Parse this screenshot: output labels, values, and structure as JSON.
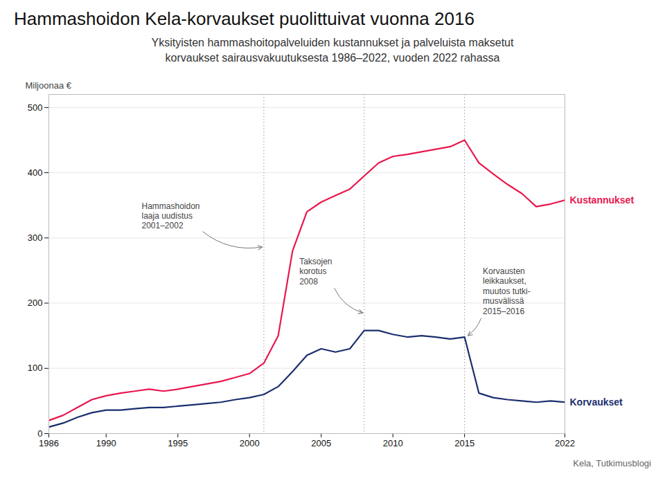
{
  "chart_data": {
    "type": "line",
    "title": "Hammashoidon Kela-korvaukset puolittuivat vuonna 2016",
    "subtitle": "Yksityisten hammashoitopalveluiden kustannukset ja palveluista maksetut\nkorvaukset sairausvakuutuksesta 1986–2022, vuoden 2022 rahassa",
    "source": "Kela, Tutkimusblogi",
    "ylabel": "Miljoonaa €",
    "x": [
      1986,
      1987,
      1988,
      1989,
      1990,
      1991,
      1992,
      1993,
      1994,
      1995,
      1996,
      1997,
      1998,
      1999,
      2000,
      2001,
      2002,
      2003,
      2004,
      2005,
      2006,
      2007,
      2008,
      2009,
      2010,
      2011,
      2012,
      2013,
      2014,
      2015,
      2016,
      2017,
      2018,
      2019,
      2020,
      2021,
      2022
    ],
    "series": [
      {
        "name": "Kustannukset",
        "color": "#e8174d",
        "values": [
          20,
          28,
          40,
          52,
          58,
          62,
          65,
          68,
          65,
          68,
          72,
          76,
          80,
          86,
          92,
          108,
          150,
          280,
          340,
          355,
          365,
          375,
          395,
          415,
          425,
          428,
          432,
          436,
          440,
          450,
          415,
          398,
          382,
          368,
          348,
          352,
          358
        ]
      },
      {
        "name": "Korvaukset",
        "color": "#1a2e6e",
        "values": [
          10,
          16,
          25,
          32,
          36,
          36,
          38,
          40,
          40,
          42,
          44,
          46,
          48,
          52,
          55,
          60,
          72,
          95,
          120,
          130,
          125,
          130,
          158,
          158,
          152,
          148,
          150,
          148,
          145,
          148,
          62,
          55,
          52,
          50,
          48,
          50,
          48
        ]
      }
    ],
    "xlim": [
      1986,
      2022
    ],
    "xticks": [
      1986,
      1990,
      1995,
      2000,
      2005,
      2010,
      2015,
      2022
    ],
    "ylim": [
      0,
      520
    ],
    "yticks": [
      0,
      100,
      200,
      300,
      400,
      500
    ],
    "grid": true,
    "vlines": [
      2001,
      2008,
      2015
    ],
    "annotations": [
      {
        "text": "Hammashoidon\nlaaja uudistus\n2001–2002",
        "x": 2001,
        "y": 285,
        "text_x": 1992.5,
        "text_y": 355
      },
      {
        "text": "Taksojen\nkorotus\n2008",
        "x": 2008,
        "y": 183,
        "text_x": 2003.5,
        "text_y": 270
      },
      {
        "text": "Korvausten\nleikkaukset,\nmuutos tutki-\nmusvälissä\n2015–2016",
        "x": 2015.2,
        "y": 148,
        "text_x": 2016.3,
        "text_y": 255
      }
    ]
  }
}
